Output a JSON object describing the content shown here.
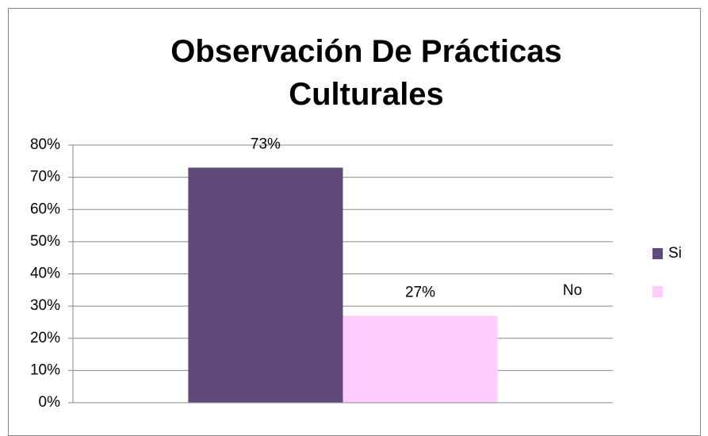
{
  "chart_data": {
    "type": "bar",
    "title": "Observación De Prácticas Culturales",
    "categories": [
      null
    ],
    "series": [
      {
        "name": "Si",
        "color": "#5f4a7a",
        "values": [
          73
        ],
        "value_labels": [
          "73%"
        ]
      },
      {
        "color": "#ffccff",
        "values": [
          27
        ],
        "value_labels": [
          "27%"
        ]
      }
    ],
    "annotations": [
      "No"
    ],
    "ylim": [
      0,
      80
    ],
    "yticks": [
      {
        "value": 0,
        "label": "0%"
      },
      {
        "value": 10,
        "label": "10%"
      },
      {
        "value": 20,
        "label": "20%"
      },
      {
        "value": 30,
        "label": "30%"
      },
      {
        "value": 40,
        "label": "40%"
      },
      {
        "value": 50,
        "label": "50%"
      },
      {
        "value": 60,
        "label": "60%"
      },
      {
        "value": 70,
        "label": "70%"
      },
      {
        "value": 80,
        "label": "80%"
      }
    ],
    "grid": true,
    "legend": "right"
  }
}
